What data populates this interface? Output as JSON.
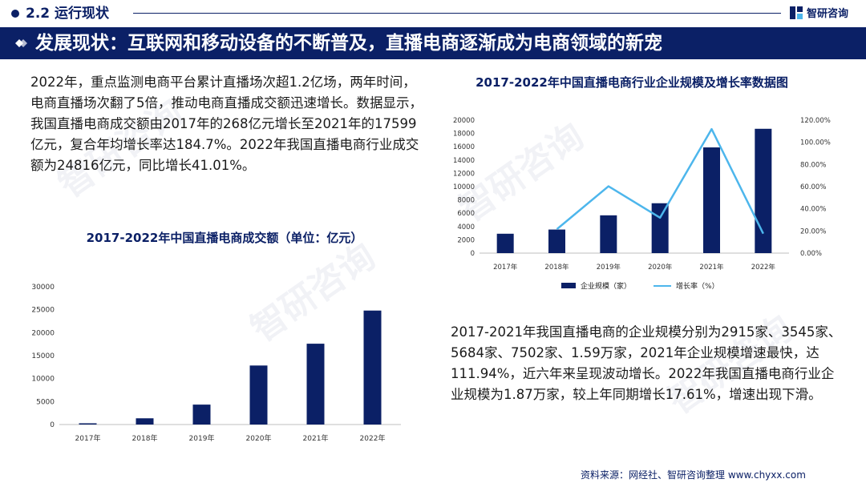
{
  "header": {
    "section_title": "2.2 运行现状",
    "brand_name": "智研咨询"
  },
  "banner": {
    "title": "发展现状：互联网和移动设备的不断普及，直播电商逐渐成为电商领域的新宠"
  },
  "left_paragraph": "2022年，重点监测电商平台累计直播场次超1.2亿场，两年时间，电商直播场次翻了5倍，推动电商直播成交额迅速增长。数据显示，我国直播电商成交额由2017年的268亿元增长至2021年的17599亿元，复合年均增长率达184.7%。2022年我国直播电商行业成交额为24816亿元，同比增长41.01%。",
  "right_paragraph": "2017-2021年我国直播电商的企业规模分别为2915家、3545家、5684家、7502家、1.59万家，2021年企业规模增速最快，达111.94%，近六年来呈现波动增长。2022年我国直播电商行业企业规模为1.87万家，较上年同期增长17.61%，增速出现下滑。",
  "source": "资料来源：网经社、智研咨询整理 www.chyxx.com",
  "watermark": "智研咨询",
  "colors": {
    "navy": "#0b2066",
    "line_blue": "#4db6ec"
  },
  "chart_data": [
    {
      "type": "bar",
      "title": "2017-2022年中国直播电商成交额（单位：亿元）",
      "categories": [
        "2017年",
        "2018年",
        "2019年",
        "2020年",
        "2021年",
        "2022年"
      ],
      "values": [
        268,
        1354,
        4338,
        12850,
        17599,
        24816
      ],
      "ylim": [
        0,
        30000
      ],
      "yticks": [
        "0",
        "5000",
        "10000",
        "15000",
        "20000",
        "25000",
        "30000"
      ],
      "grid": false,
      "legend": "none"
    },
    {
      "type": "bar",
      "title": "2017-2022年中国直播电商行业企业规模及增长率数据图",
      "categories": [
        "2017年",
        "2018年",
        "2019年",
        "2020年",
        "2021年",
        "2022年"
      ],
      "series": [
        {
          "name": "企业规模（家）",
          "type": "bar",
          "axis": "left",
          "values": [
            2915,
            3545,
            5684,
            7502,
            15900,
            18700
          ]
        },
        {
          "name": "增长率（%）",
          "type": "line",
          "axis": "right",
          "values": [
            null,
            21.61,
            60.34,
            31.98,
            111.94,
            17.61
          ]
        }
      ],
      "ylim": [
        0,
        20000
      ],
      "yticks": [
        "0",
        "2000",
        "4000",
        "6000",
        "8000",
        "10000",
        "12000",
        "14000",
        "16000",
        "18000",
        "20000"
      ],
      "y2lim": [
        0,
        120
      ],
      "y2ticks": [
        "0.00%",
        "20.00%",
        "40.00%",
        "60.00%",
        "80.00%",
        "100.00%",
        "120.00%"
      ],
      "grid": false,
      "legend": "bottom"
    }
  ]
}
